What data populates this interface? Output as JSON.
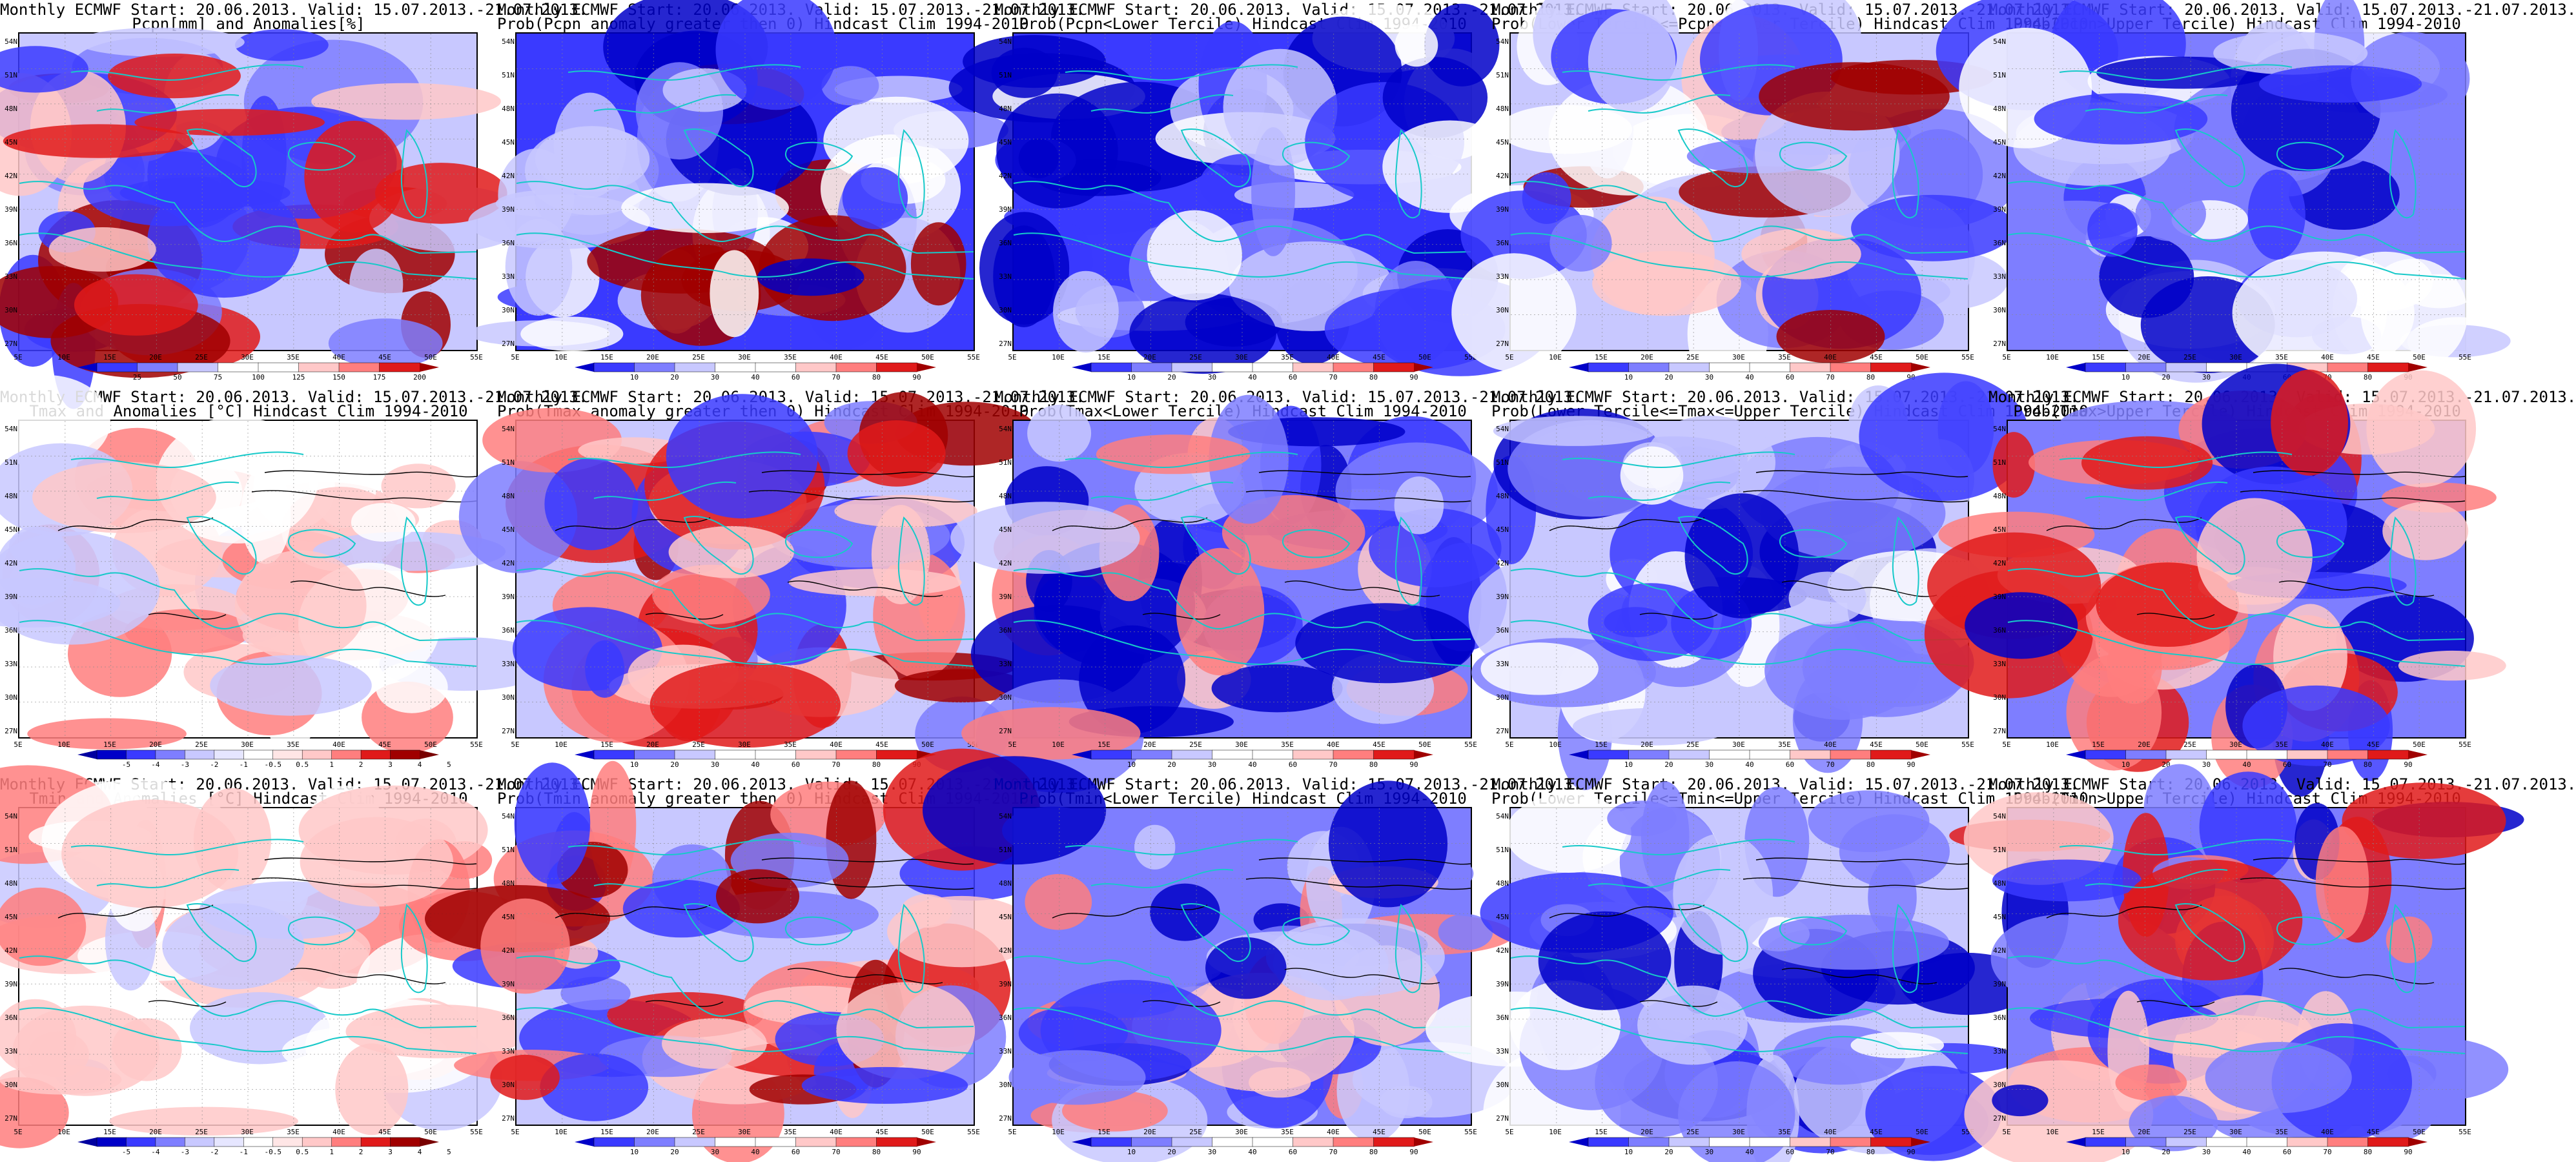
{
  "xticks": [
    "5E",
    "10E",
    "15E",
    "20E",
    "25E",
    "30E",
    "35E",
    "40E",
    "45E",
    "50E",
    "55E"
  ],
  "yticks": [
    "54N",
    "51N",
    "48N",
    "45N",
    "42N",
    "39N",
    "36N",
    "33N",
    "30N",
    "27N"
  ],
  "colors": {
    "deep_blue": "#0000c8",
    "blue": "#3a3aff",
    "mid_blue": "#7e7eff",
    "light_blue": "#c8c8ff",
    "white": "#ffffff",
    "light_red": "#ffc8c8",
    "mid_red": "#ff7e7e",
    "red": "#e01a1a",
    "dark_red": "#a00000",
    "coast": "#17c9c9",
    "contour": "#000000"
  },
  "panels": [
    {
      "title1": "Monthly ECMWF Start: 20.06.2013. Valid: 15.07.2013.-21.07.2013.",
      "title2": "Pcpn[mm] and Anomalies[%]",
      "scheme": "pcpn",
      "cbar": [
        "25",
        "50",
        "75",
        "100",
        "125",
        "150",
        "175",
        "200"
      ]
    },
    {
      "title1": "Monthly ECMWF Start: 20.06.2013. Valid: 15.07.2013.-21.07.2013.",
      "title2": "Prob(Pcpn anomaly greater then 0) Hindcast Clim 1994-2010",
      "scheme": "pgt0",
      "cbar": [
        "10",
        "20",
        "30",
        "40",
        "60",
        "70",
        "80",
        "90"
      ]
    },
    {
      "title1": "Monthly ECMWF Start: 20.06.2013. Valid: 15.07.2013.-21.07.2013.",
      "title2": "Prob(Pcpn<Lower Tercile) Hindcast Clim 1994-2010",
      "scheme": "plow",
      "cbar": [
        "10",
        "20",
        "30",
        "40",
        "60",
        "70",
        "80",
        "90"
      ]
    },
    {
      "title1": "Monthly ECMWF Start: 20.06.2013. Valid: 15.07.2013.-21.07.2013.",
      "title2": "Prob(Lower Tercile<=Pcpn<=Upper Tercile) Hindcast Clim 1994-2010",
      "scheme": "pmid",
      "cbar": [
        "10",
        "20",
        "30",
        "40",
        "60",
        "70",
        "80",
        "90"
      ]
    },
    {
      "title1": "Monthly ECMWF Start: 20.06.2013. Valid: 15.07.2013.-21.07.2013.",
      "title2": "Prob(Pcpn>Upper Tercile) Hindcast Clim 1994-2010",
      "scheme": "pup",
      "cbar": [
        "10",
        "20",
        "30",
        "40",
        "60",
        "70",
        "80",
        "90"
      ]
    },
    {
      "title1": "Monthly ECMWF Start: 20.06.2013. Valid: 15.07.2013.-21.07.2013.",
      "title2": "Tmax and Anomalies [°C] Hindcast Clim 1994-2010",
      "scheme": "tanom",
      "cbar": [
        "-5",
        "-4",
        "-3",
        "-2",
        "-1",
        "-0.5",
        "0.5",
        "1",
        "2",
        "3",
        "4",
        "5"
      ]
    },
    {
      "title1": "Monthly ECMWF Start: 20.06.2013. Valid: 15.07.2013.-21.07.2013.",
      "title2": "Prob(Tmax anomaly greater then 0) Hindcast Clim 1994-2010",
      "scheme": "tgt0",
      "cbar": [
        "10",
        "20",
        "30",
        "40",
        "60",
        "70",
        "80",
        "90"
      ]
    },
    {
      "title1": "Monthly ECMWF Start: 20.06.2013. Valid: 15.07.2013.-21.07.2013.",
      "title2": "Prob(Tmax<Lower Tercile) Hindcast Clim 1994-2010",
      "scheme": "tlow",
      "cbar": [
        "10",
        "20",
        "30",
        "40",
        "60",
        "70",
        "80",
        "90"
      ]
    },
    {
      "title1": "Monthly ECMWF Start: 20.06.2013. Valid: 15.07.2013.-21.07.2013.",
      "title2": "Prob(Lower Tercile<=Tmax<=Upper Tercile) Hindcast Clim 1994-2010",
      "scheme": "tmid",
      "cbar": [
        "10",
        "20",
        "30",
        "40",
        "60",
        "70",
        "80",
        "90"
      ]
    },
    {
      "title1": "Monthly ECMWF Start: 20.06.2013. Valid: 15.07.2013.-21.07.2013.",
      "title2": "Prob(Tmax>Upper Tercile) Hindcast Clim 1994-2010",
      "scheme": "tup",
      "cbar": [
        "10",
        "20",
        "30",
        "40",
        "60",
        "70",
        "80",
        "90"
      ]
    },
    {
      "title1": "Monthly ECMWF Start: 20.06.2013. Valid: 15.07.2013.-21.07.2013.",
      "title2": "Tmin and Anomalies [°C] Hindcast Clim 1994-2010",
      "scheme": "tanom",
      "cbar": [
        "-5",
        "-4",
        "-3",
        "-2",
        "-1",
        "-0.5",
        "0.5",
        "1",
        "2",
        "3",
        "4",
        "5"
      ]
    },
    {
      "title1": "Monthly ECMWF Start: 20.06.2013. Valid: 15.07.2013.-21.07.2013.",
      "title2": "Prob(Tmin anomaly greater then 0) Hindcast Clim 1994-2010",
      "scheme": "tgt0",
      "cbar": [
        "10",
        "20",
        "30",
        "40",
        "60",
        "70",
        "80",
        "90"
      ]
    },
    {
      "title1": "Monthly ECMWF Start: 20.06.2013. Valid: 15.07.2013.-21.07.2013.",
      "title2": "Prob(Tmin<Lower Tercile) Hindcast Clim 1994-2010",
      "scheme": "tlow",
      "cbar": [
        "10",
        "20",
        "30",
        "40",
        "60",
        "70",
        "80",
        "90"
      ]
    },
    {
      "title1": "Monthly ECMWF Start: 20.06.2013. Valid: 15.07.2013.-21.07.2013.",
      "title2": "Prob(Lower Tercile<=Tmin<=Upper Tercile) Hindcast Clim 1994-2010",
      "scheme": "tmid",
      "cbar": [
        "10",
        "20",
        "30",
        "40",
        "60",
        "70",
        "80",
        "90"
      ]
    },
    {
      "title1": "Monthly ECMWF Start: 20.06.2013. Valid: 15.07.2013.-21.07.2013.",
      "title2": "Prob(Tmin>Upper Tercile) Hindcast Clim 1994-2010",
      "scheme": "tup",
      "cbar": [
        "10",
        "20",
        "30",
        "40",
        "60",
        "70",
        "80",
        "90"
      ]
    }
  ]
}
